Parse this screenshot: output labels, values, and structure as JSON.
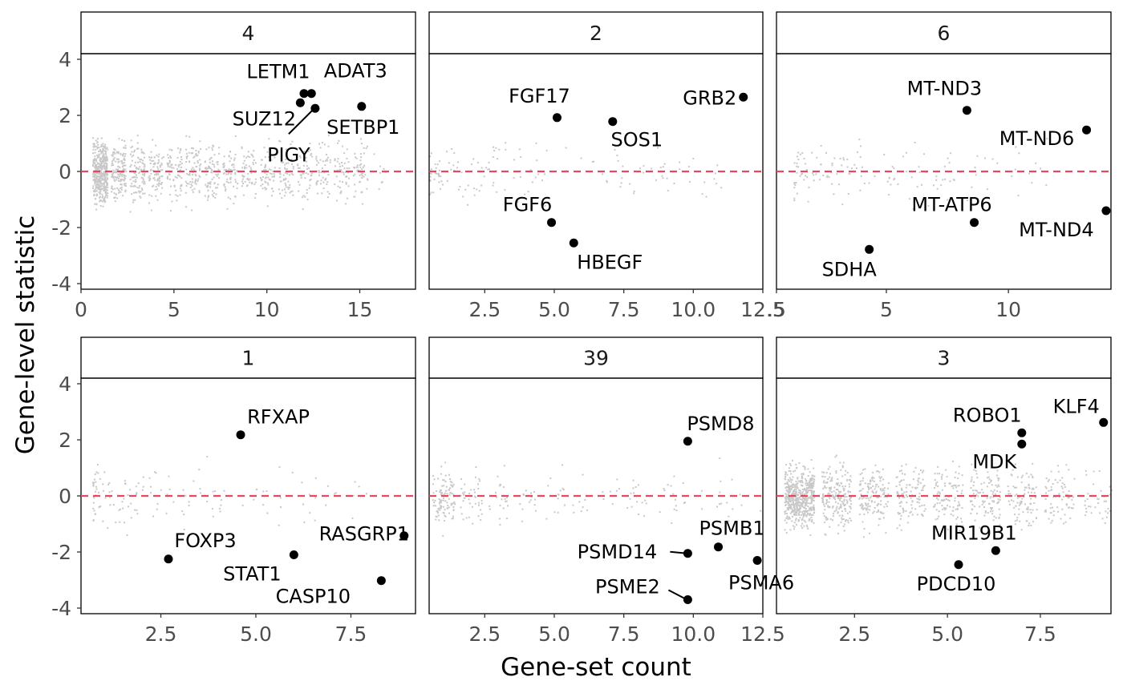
{
  "chart_data": {
    "type": "scatter",
    "xlabel": "Gene-set count",
    "ylabel": "Gene-level statistic",
    "reference_line": {
      "y": 0,
      "style": "dashed",
      "color": "#e34a5f"
    },
    "background_points_color": "#c8c8c8",
    "highlight_color": "#000000",
    "grid": false,
    "panels": [
      {
        "strip": "4",
        "xlim": [
          0,
          18
        ],
        "ylim": [
          -4.2,
          4.2
        ],
        "xticks": [
          0,
          5,
          10,
          15
        ],
        "xtick_labels": [
          "0",
          "5",
          "10",
          "15"
        ],
        "yticks": [
          -4,
          -2,
          0,
          2,
          4
        ],
        "ytick_labels": [
          "-4",
          "-2",
          "0",
          "2",
          "4"
        ],
        "background": {
          "x_min": 0.6,
          "x_max": 16,
          "density": "high"
        },
        "points": [
          {
            "label": "LETM1",
            "x": 12.0,
            "y": 2.78
          },
          {
            "label": "ADAT3",
            "x": 12.4,
            "y": 2.78
          },
          {
            "label": "SUZ12",
            "x": 11.8,
            "y": 2.45
          },
          {
            "label": "PIGY",
            "x": 12.6,
            "y": 2.25
          },
          {
            "label": "SETBP1",
            "x": 15.1,
            "y": 2.32
          }
        ]
      },
      {
        "strip": "2",
        "xlim": [
          0.5,
          12.5
        ],
        "ylim": [
          -4.2,
          4.2
        ],
        "xticks": [
          2.5,
          5.0,
          7.5,
          10.0,
          12.5
        ],
        "xtick_labels": [
          "2.5",
          "5.0",
          "7.5",
          "10.0",
          "12.5"
        ],
        "yticks": [
          -4,
          -2,
          0,
          2,
          4
        ],
        "ytick_labels": [
          "-4",
          "-2",
          "0",
          "2",
          "4"
        ],
        "background": {
          "x_min": 0.5,
          "x_max": 11,
          "density": "low"
        },
        "points": [
          {
            "label": "FGF17",
            "x": 5.1,
            "y": 1.92
          },
          {
            "label": "GRB2",
            "x": 11.8,
            "y": 2.65
          },
          {
            "label": "SOS1",
            "x": 7.1,
            "y": 1.78
          },
          {
            "label": "FGF6",
            "x": 4.9,
            "y": -1.82
          },
          {
            "label": "HBEGF",
            "x": 5.7,
            "y": -2.55
          }
        ]
      },
      {
        "strip": "6",
        "xlim": [
          0.5,
          14.2
        ],
        "ylim": [
          -4.2,
          4.2
        ],
        "xticks": [
          0.5,
          5,
          10
        ],
        "xtick_labels": [
          ".5",
          "5",
          "10"
        ],
        "yticks": [
          -4,
          -2,
          0,
          2,
          4
        ],
        "ytick_labels": [
          "-4",
          "-2",
          "0",
          "2",
          "4"
        ],
        "background": {
          "x_min": 1.2,
          "x_max": 12,
          "density": "low"
        },
        "points": [
          {
            "label": "MT-ND3",
            "x": 8.3,
            "y": 2.18
          },
          {
            "label": "MT-ND6",
            "x": 13.2,
            "y": 1.48
          },
          {
            "label": "MT-ATP6",
            "x": 8.6,
            "y": -1.82
          },
          {
            "label": "MT-ND4",
            "x": 14.0,
            "y": -1.4
          },
          {
            "label": "SDHA",
            "x": 4.3,
            "y": -2.78
          }
        ]
      },
      {
        "strip": "1",
        "xlim": [
          0.4,
          9.2
        ],
        "ylim": [
          -4.2,
          4.2
        ],
        "xticks": [
          2.5,
          5.0,
          7.5
        ],
        "xtick_labels": [
          "2.5",
          "5.0",
          "7.5"
        ],
        "yticks": [
          -4,
          -2,
          0,
          2,
          4
        ],
        "ytick_labels": [
          "-4",
          "-2",
          "0",
          "2",
          "4"
        ],
        "background": {
          "x_min": 0.7,
          "x_max": 8,
          "density": "low"
        },
        "points": [
          {
            "label": "RFXAP",
            "x": 4.6,
            "y": 2.18
          },
          {
            "label": "RASGRP1",
            "x": 8.9,
            "y": -1.42
          },
          {
            "label": "FOXP3",
            "x": 2.7,
            "y": -2.25
          },
          {
            "label": "STAT1",
            "x": 6.0,
            "y": -2.1
          },
          {
            "label": "CASP10",
            "x": 8.3,
            "y": -3.02
          }
        ]
      },
      {
        "strip": "39",
        "xlim": [
          0.5,
          12.5
        ],
        "ylim": [
          -4.2,
          4.2
        ],
        "xticks": [
          2.5,
          5.0,
          7.5,
          10.0,
          12.5
        ],
        "xtick_labels": [
          "2.5",
          "5.0",
          "7.5",
          "10.0",
          "12.5"
        ],
        "yticks": [
          -4,
          -2,
          0,
          2,
          4
        ],
        "ytick_labels": [
          "-4",
          "-2",
          "0",
          "2",
          "4"
        ],
        "background": {
          "x_min": 0.6,
          "x_max": 12.5,
          "density": "medium"
        },
        "points": [
          {
            "label": "PSMD8",
            "x": 9.8,
            "y": 1.95
          },
          {
            "label": "PSMB1",
            "x": 10.9,
            "y": -1.82
          },
          {
            "label": "PSMD14",
            "x": 9.8,
            "y": -2.05
          },
          {
            "label": "PSMA6",
            "x": 12.3,
            "y": -2.3
          },
          {
            "label": "PSME2",
            "x": 9.8,
            "y": -3.7
          }
        ]
      },
      {
        "strip": "3",
        "xlim": [
          0.4,
          9.4
        ],
        "ylim": [
          -4.2,
          4.2
        ],
        "xticks": [
          2.5,
          5.0,
          7.5
        ],
        "xtick_labels": [
          "2.5",
          "5.0",
          "7.5"
        ],
        "yticks": [
          -4,
          -2,
          0,
          2,
          4
        ],
        "ytick_labels": [
          "-4",
          "-2",
          "0",
          "2",
          "4"
        ],
        "background": {
          "x_min": 0.6,
          "x_max": 9,
          "density": "high"
        },
        "points": [
          {
            "label": "KLF4",
            "x": 9.2,
            "y": 2.62
          },
          {
            "label": "ROBO1",
            "x": 7.0,
            "y": 2.25
          },
          {
            "label": "MDK",
            "x": 7.0,
            "y": 1.85
          },
          {
            "label": "MIR19B1",
            "x": 6.3,
            "y": -1.95
          },
          {
            "label": "PDCD10",
            "x": 5.3,
            "y": -2.45
          }
        ]
      }
    ]
  }
}
